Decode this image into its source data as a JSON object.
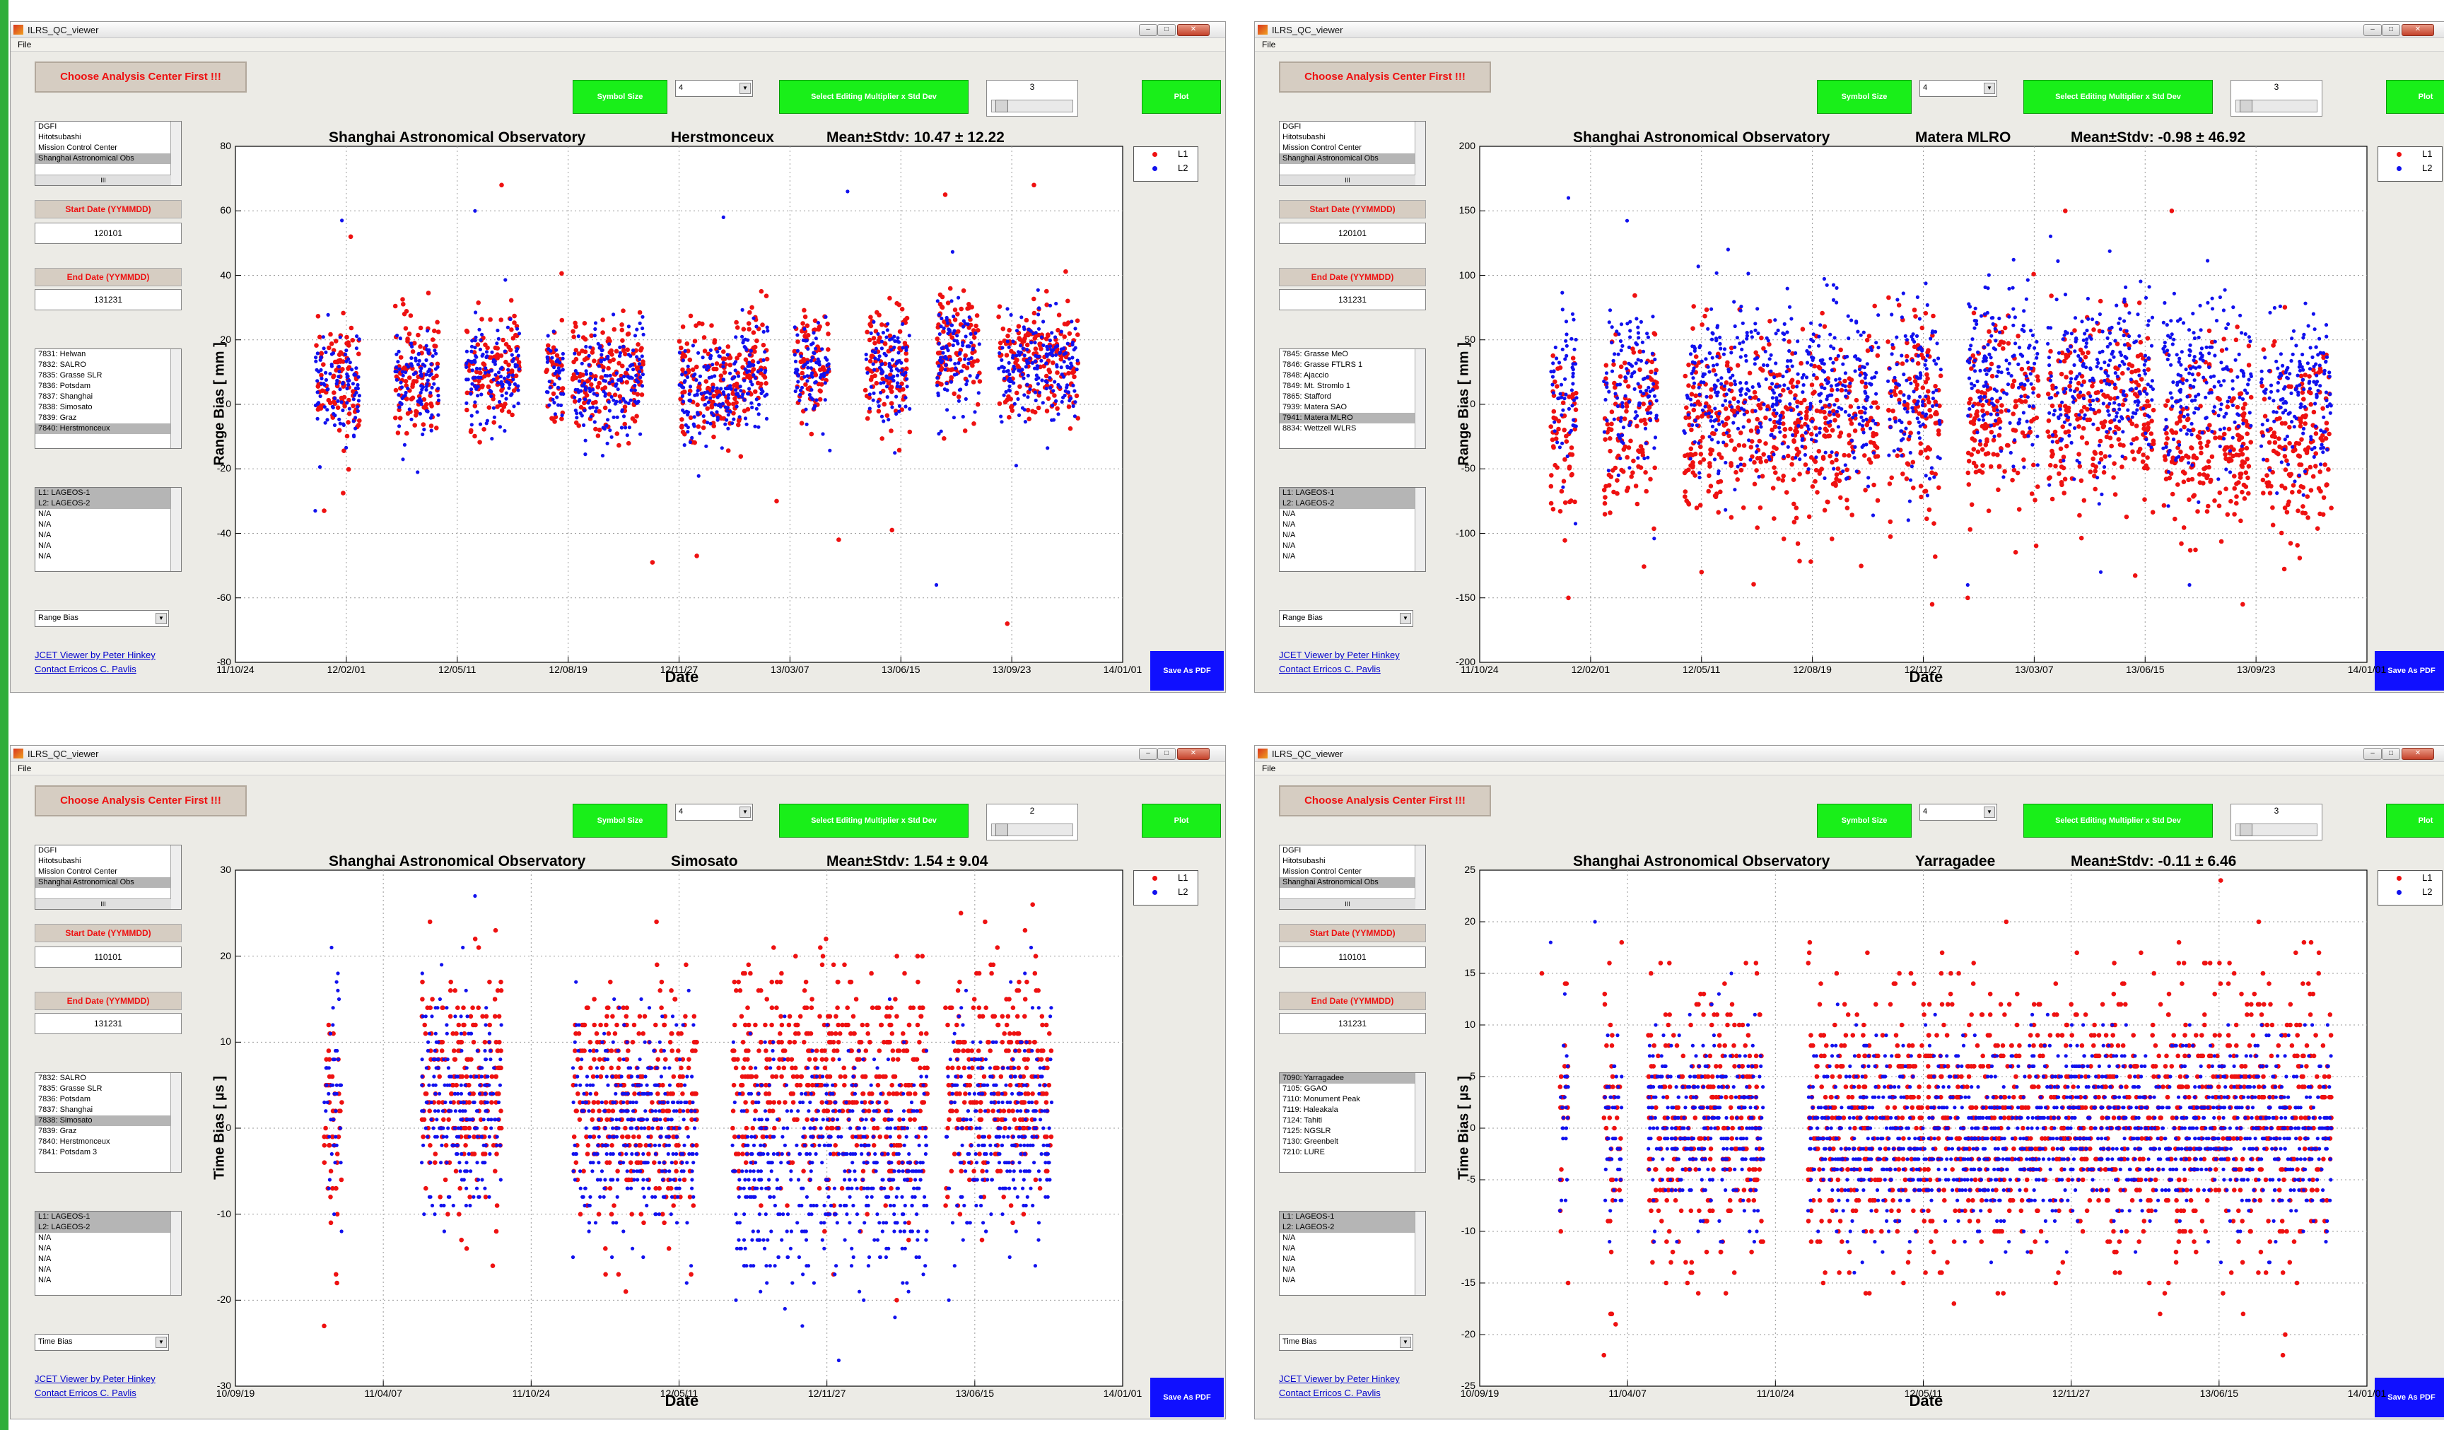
{
  "app": {
    "title": "ILRS_QC_viewer",
    "menu_file": "File"
  },
  "common": {
    "choose_button": "Choose Analysis Center First !!!",
    "symbol_size_label": "Symbol Size",
    "symbol_size_value": "4",
    "edit_mult_label": "Select Editing Multiplier x Std Dev",
    "plot_button": "Plot",
    "save_pdf": "Save As PDF",
    "start_label": "Start Date (YYMMDD)",
    "end_label": "End Date (YYMMDD)",
    "link1": "JCET Viewer by Peter Hinkey",
    "link2": "Contact Erricos C. Pavlis",
    "centers": [
      "DGFI",
      "Hitotsubashi",
      "Mission Control Center",
      "Shanghai Astronomical Obs"
    ],
    "hscroll_thumb": "III",
    "legend": [
      "L1",
      "L2"
    ],
    "xlabel": "Date",
    "colors": {
      "L1": "#ee1111",
      "L2": "#1111ee",
      "button_green": "#19ef19",
      "pdf_blue": "#1010ff",
      "label_red": "#ee1111"
    }
  },
  "panels": [
    {
      "center_title": "Shanghai Astronomical Observatory",
      "station": "Herstmonceux",
      "stats": "Mean±Stdv: 10.47 ± 12.22",
      "multiplier": "3",
      "start": "120101",
      "end": "131231",
      "stations": [
        "7831: Helwan",
        "7832: SALRO",
        "7835: Grasse SLR",
        "7836: Potsdam",
        "7837: Shanghai",
        "7838: Simosato",
        "7839: Graz",
        "7840: Herstmonceux"
      ],
      "station_selected": 7,
      "satellites": [
        "L1: LAGEOS-1",
        "L2: LAGEOS-2",
        "N/A",
        "N/A",
        "N/A",
        "N/A",
        "N/A"
      ],
      "quantity": "Range Bias",
      "ylabel": "Range Bias [ mm ]"
    },
    {
      "center_title": "Shanghai Astronomical Observatory",
      "station": "Matera MLRO",
      "stats": "Mean±Stdv: -0.98 ± 46.92",
      "multiplier": "3",
      "start": "120101",
      "end": "131231",
      "stations": [
        "7845: Grasse MeO",
        "7846: Grasse FTLRS 1",
        "7848: Ajaccio",
        "7849: Mt. Stromlo 1",
        "7865: Stafford",
        "7939: Matera SAO",
        "7941: Matera MLRO",
        "8834: Wettzell WLRS"
      ],
      "station_selected": 6,
      "satellites": [
        "L1: LAGEOS-1",
        "L2: LAGEOS-2",
        "N/A",
        "N/A",
        "N/A",
        "N/A",
        "N/A"
      ],
      "quantity": "Range Bias",
      "ylabel": "Range Bias [ mm ]"
    },
    {
      "center_title": "Shanghai Astronomical Observatory",
      "station": "Simosato",
      "stats": "Mean±Stdv: 1.54 ± 9.04",
      "multiplier": "2",
      "start": "110101",
      "end": "131231",
      "stations": [
        "7832: SALRO",
        "7835: Grasse SLR",
        "7836: Potsdam",
        "7837: Shanghai",
        "7838: Simosato",
        "7839: Graz",
        "7840: Herstmonceux",
        "7841: Potsdam 3"
      ],
      "station_selected": 4,
      "satellites": [
        "L1: LAGEOS-1",
        "L2: LAGEOS-2",
        "N/A",
        "N/A",
        "N/A",
        "N/A",
        "N/A"
      ],
      "quantity": "Time Bias",
      "ylabel": "Time Bias [ µs ]"
    },
    {
      "center_title": "Shanghai Astronomical Observatory",
      "station": "Yarragadee",
      "stats": "Mean±Stdv: -0.11 ± 6.46",
      "multiplier": "3",
      "start": "110101",
      "end": "131231",
      "stations": [
        "7090: Yarragadee",
        "7105: GGAO",
        "7110: Monument Peak",
        "7119: Haleakala",
        "7124: Tahiti",
        "7125: NGSLR",
        "7130: Greenbelt",
        "7210: LURE"
      ],
      "station_selected": 0,
      "satellites": [
        "L1: LAGEOS-1",
        "L2: LAGEOS-2",
        "N/A",
        "N/A",
        "N/A",
        "N/A",
        "N/A"
      ],
      "quantity": "Time Bias",
      "ylabel": "Time Bias [ µs ]"
    }
  ],
  "chart_data": [
    {
      "type": "scatter",
      "title": "Shanghai Astronomical Observatory   Herstmonceux   Mean±Stdv: 10.47 ± 12.22",
      "xlabel": "Date",
      "ylabel": "Range Bias [ mm ]",
      "xticks": [
        "11/10/24",
        "12/02/01",
        "12/05/11",
        "12/08/19",
        "12/11/27",
        "13/03/07",
        "13/06/15",
        "13/09/23",
        "14/01/01"
      ],
      "xlim": [
        "11/10/24",
        "14/01/01"
      ],
      "ylim": [
        -80,
        80
      ],
      "yticks": [
        -80,
        -60,
        -40,
        -20,
        0,
        20,
        40,
        60,
        80
      ],
      "grid": true,
      "legend_position": "top-right",
      "seed": 11,
      "series": [
        {
          "name": "L1",
          "color": "#ee1111",
          "mean": 10.5,
          "stdv": 12.2,
          "clusters": [
            [
              0.09,
              0.14,
              7
            ],
            [
              0.18,
              0.23,
              8
            ],
            [
              0.26,
              0.32,
              11
            ],
            [
              0.35,
              0.37,
              9
            ],
            [
              0.38,
              0.46,
              8
            ],
            [
              0.5,
              0.57,
              7
            ],
            [
              0.57,
              0.6,
              14
            ],
            [
              0.63,
              0.67,
              12
            ],
            [
              0.71,
              0.76,
              13
            ],
            [
              0.79,
              0.84,
              18
            ],
            [
              0.86,
              0.95,
              14
            ]
          ],
          "outliers": [
            [
              0.1,
              -33
            ],
            [
              0.13,
              52
            ],
            [
              0.3,
              68
            ],
            [
              0.47,
              -49
            ],
            [
              0.52,
              -47
            ],
            [
              0.61,
              -30
            ],
            [
              0.68,
              -42
            ],
            [
              0.74,
              -39
            ],
            [
              0.8,
              65
            ],
            [
              0.87,
              -68
            ],
            [
              0.9,
              68
            ]
          ]
        },
        {
          "name": "L2",
          "color": "#1111ee",
          "mean": 8.0,
          "stdv": 11.0,
          "clusters": [
            [
              0.09,
              0.14,
              5
            ],
            [
              0.18,
              0.23,
              6
            ],
            [
              0.26,
              0.32,
              9
            ],
            [
              0.35,
              0.37,
              8
            ],
            [
              0.38,
              0.46,
              7
            ],
            [
              0.5,
              0.57,
              5
            ],
            [
              0.57,
              0.6,
              11
            ],
            [
              0.63,
              0.67,
              10
            ],
            [
              0.71,
              0.76,
              11
            ],
            [
              0.79,
              0.84,
              15
            ],
            [
              0.86,
              0.95,
              12
            ]
          ],
          "outliers": [
            [
              0.09,
              -33
            ],
            [
              0.12,
              57
            ],
            [
              0.27,
              60
            ],
            [
              0.55,
              58
            ],
            [
              0.69,
              66
            ],
            [
              0.79,
              -56
            ],
            [
              0.88,
              -19
            ]
          ]
        }
      ]
    },
    {
      "type": "scatter",
      "title": "Shanghai Astronomical Observatory   Matera MLRO   Mean±Stdv: -0.98 ± 46.92",
      "xlabel": "Date",
      "ylabel": "Range Bias [ mm ]",
      "xticks": [
        "11/10/24",
        "12/02/01",
        "12/05/11",
        "12/08/19",
        "12/11/27",
        "13/03/07",
        "13/06/15",
        "13/09/23",
        "14/01/01"
      ],
      "xlim": [
        "11/10/24",
        "14/01/01"
      ],
      "ylim": [
        -200,
        200
      ],
      "yticks": [
        -200,
        -150,
        -100,
        -50,
        0,
        50,
        100,
        150,
        200
      ],
      "grid": true,
      "legend_position": "top-right",
      "seed": 23,
      "series": [
        {
          "name": "L1",
          "color": "#ee1111",
          "mean": -15,
          "stdv": 48,
          "clusters": [
            [
              0.08,
              0.11,
              -25
            ],
            [
              0.14,
              0.2,
              -20
            ],
            [
              0.23,
              0.45,
              -22
            ],
            [
              0.46,
              0.52,
              -10
            ],
            [
              0.55,
              0.63,
              -5
            ],
            [
              0.64,
              0.76,
              -10
            ],
            [
              0.77,
              0.87,
              -30
            ],
            [
              0.88,
              0.96,
              -25
            ]
          ],
          "outliers": [
            [
              0.1,
              -150
            ],
            [
              0.25,
              -130
            ],
            [
              0.55,
              -150
            ],
            [
              0.86,
              -155
            ],
            [
              0.66,
              150
            ],
            [
              0.78,
              150
            ],
            [
              0.51,
              -155
            ]
          ]
        },
        {
          "name": "L2",
          "color": "#1111ee",
          "mean": 10,
          "stdv": 45,
          "clusters": [
            [
              0.08,
              0.11,
              10
            ],
            [
              0.14,
              0.2,
              15
            ],
            [
              0.23,
              0.45,
              15
            ],
            [
              0.46,
              0.52,
              10
            ],
            [
              0.55,
              0.63,
              25
            ],
            [
              0.64,
              0.76,
              20
            ],
            [
              0.77,
              0.87,
              15
            ],
            [
              0.88,
              0.96,
              10
            ]
          ],
          "outliers": [
            [
              0.1,
              160
            ],
            [
              0.28,
              120
            ],
            [
              0.55,
              -140
            ],
            [
              0.7,
              -130
            ],
            [
              0.8,
              -140
            ]
          ]
        }
      ]
    },
    {
      "type": "scatter",
      "title": "Shanghai Astronomical Observatory   Simosato   Mean±Stdv: 1.54 ± 9.04",
      "xlabel": "Date",
      "ylabel": "Time Bias [ µs ]",
      "xticks": [
        "10/09/19",
        "11/04/07",
        "11/10/24",
        "12/05/11",
        "12/11/27",
        "13/06/15",
        "14/01/01"
      ],
      "xlim": [
        "10/09/19",
        "14/01/01"
      ],
      "ylim": [
        -30,
        30
      ],
      "yticks": [
        -30,
        -20,
        -10,
        0,
        10,
        20,
        30
      ],
      "grid": true,
      "legend_position": "top-right",
      "seed": 37,
      "quantize": 1,
      "series": [
        {
          "name": "L1",
          "color": "#ee1111",
          "mean": 3,
          "stdv": 9,
          "clusters": [
            [
              0.1,
              0.12,
              0
            ],
            [
              0.21,
              0.3,
              5
            ],
            [
              0.38,
              0.52,
              3
            ],
            [
              0.56,
              0.78,
              5
            ],
            [
              0.8,
              0.92,
              5
            ]
          ],
          "outliers": [
            [
              0.1,
              -23
            ],
            [
              0.29,
              -16
            ],
            [
              0.44,
              -19
            ]
          ]
        },
        {
          "name": "L2",
          "color": "#1111ee",
          "mean": -2,
          "stdv": 9,
          "clusters": [
            [
              0.1,
              0.12,
              5
            ],
            [
              0.21,
              0.3,
              3
            ],
            [
              0.38,
              0.52,
              0
            ],
            [
              0.56,
              0.78,
              -5
            ],
            [
              0.8,
              0.92,
              0
            ]
          ],
          "outliers": [
            [
              0.11,
              14
            ],
            [
              0.27,
              27
            ],
            [
              0.68,
              -27
            ]
          ]
        }
      ]
    },
    {
      "type": "scatter",
      "title": "Shanghai Astronomical Observatory   Yarragadee   Mean±Stdv: -0.11 ± 6.46",
      "xlabel": "Date",
      "ylabel": "Time Bias [ µs ]",
      "xticks": [
        "10/09/19",
        "11/04/07",
        "11/10/24",
        "12/05/11",
        "12/11/27",
        "13/06/15",
        "14/01/01"
      ],
      "xlim": [
        "10/09/19",
        "14/01/01"
      ],
      "ylim": [
        -25,
        25
      ],
      "yticks": [
        -25,
        -20,
        -15,
        -10,
        -5,
        0,
        5,
        10,
        15,
        20,
        25
      ],
      "grid": true,
      "legend_position": "top-right",
      "seed": 53,
      "quantize": 1,
      "series": [
        {
          "name": "L1",
          "color": "#ee1111",
          "mean": 1,
          "stdv": 9,
          "clusters": [
            [
              0.09,
              0.1,
              0
            ],
            [
              0.14,
              0.16,
              0
            ],
            [
              0.19,
              0.32,
              0
            ],
            [
              0.37,
              0.45,
              0
            ],
            [
              0.45,
              0.6,
              1
            ],
            [
              0.6,
              0.85,
              1
            ],
            [
              0.85,
              0.96,
              1
            ]
          ],
          "outliers": [
            [
              0.07,
              15
            ],
            [
              0.14,
              -22
            ],
            [
              0.16,
              18
            ]
          ]
        },
        {
          "name": "L2",
          "color": "#1111ee",
          "mean": -1,
          "stdv": 6,
          "clusters": [
            [
              0.09,
              0.1,
              0
            ],
            [
              0.14,
              0.16,
              0
            ],
            [
              0.19,
              0.32,
              0
            ],
            [
              0.37,
              0.45,
              0
            ],
            [
              0.45,
              0.6,
              -1
            ],
            [
              0.6,
              0.85,
              0
            ],
            [
              0.85,
              0.96,
              0
            ]
          ],
          "outliers": [
            [
              0.08,
              18
            ],
            [
              0.13,
              20
            ]
          ]
        }
      ]
    }
  ]
}
